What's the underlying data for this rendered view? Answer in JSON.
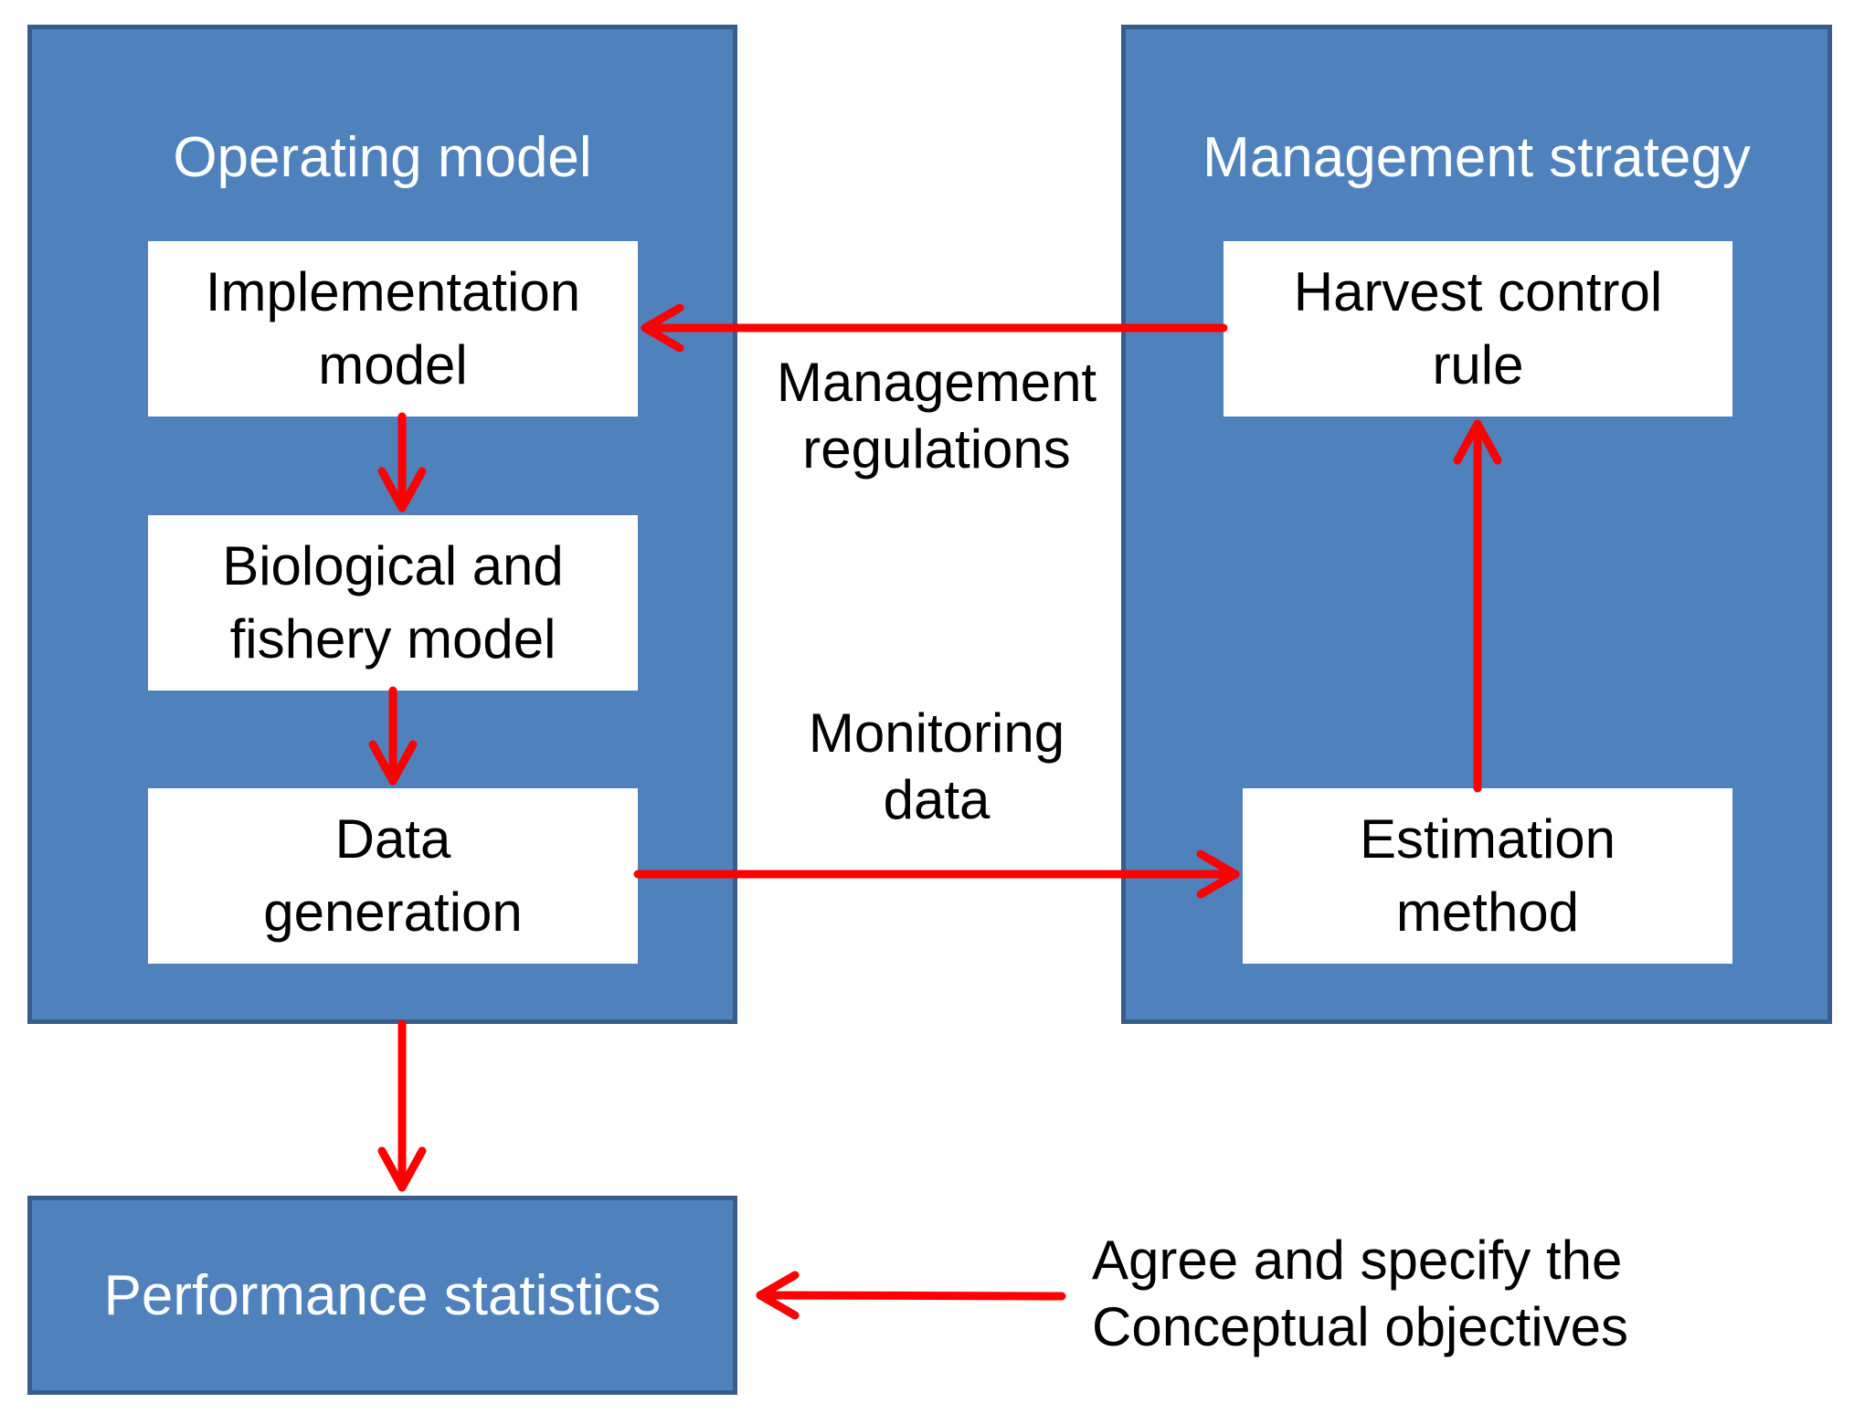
{
  "operating_model": {
    "title": "Operating model",
    "implementation_model": "Implementation\nmodel",
    "biological_fishery_model": "Biological and\nfishery model",
    "data_generation": "Data\ngeneration"
  },
  "management_strategy": {
    "title": "Management strategy",
    "harvest_control_rule": "Harvest control\nrule",
    "estimation_method": "Estimation\nmethod"
  },
  "flows": {
    "management_regulations": "Management\nregulations",
    "monitoring_data": "Monitoring\ndata"
  },
  "performance_statistics": "Performance statistics",
  "objectives_note": "Agree and specify the\nConceptual objectives",
  "colors": {
    "panel_fill": "#4f81bd",
    "panel_border": "#385d8a",
    "arrow": "#ff0000",
    "box_fill": "#ffffff"
  }
}
